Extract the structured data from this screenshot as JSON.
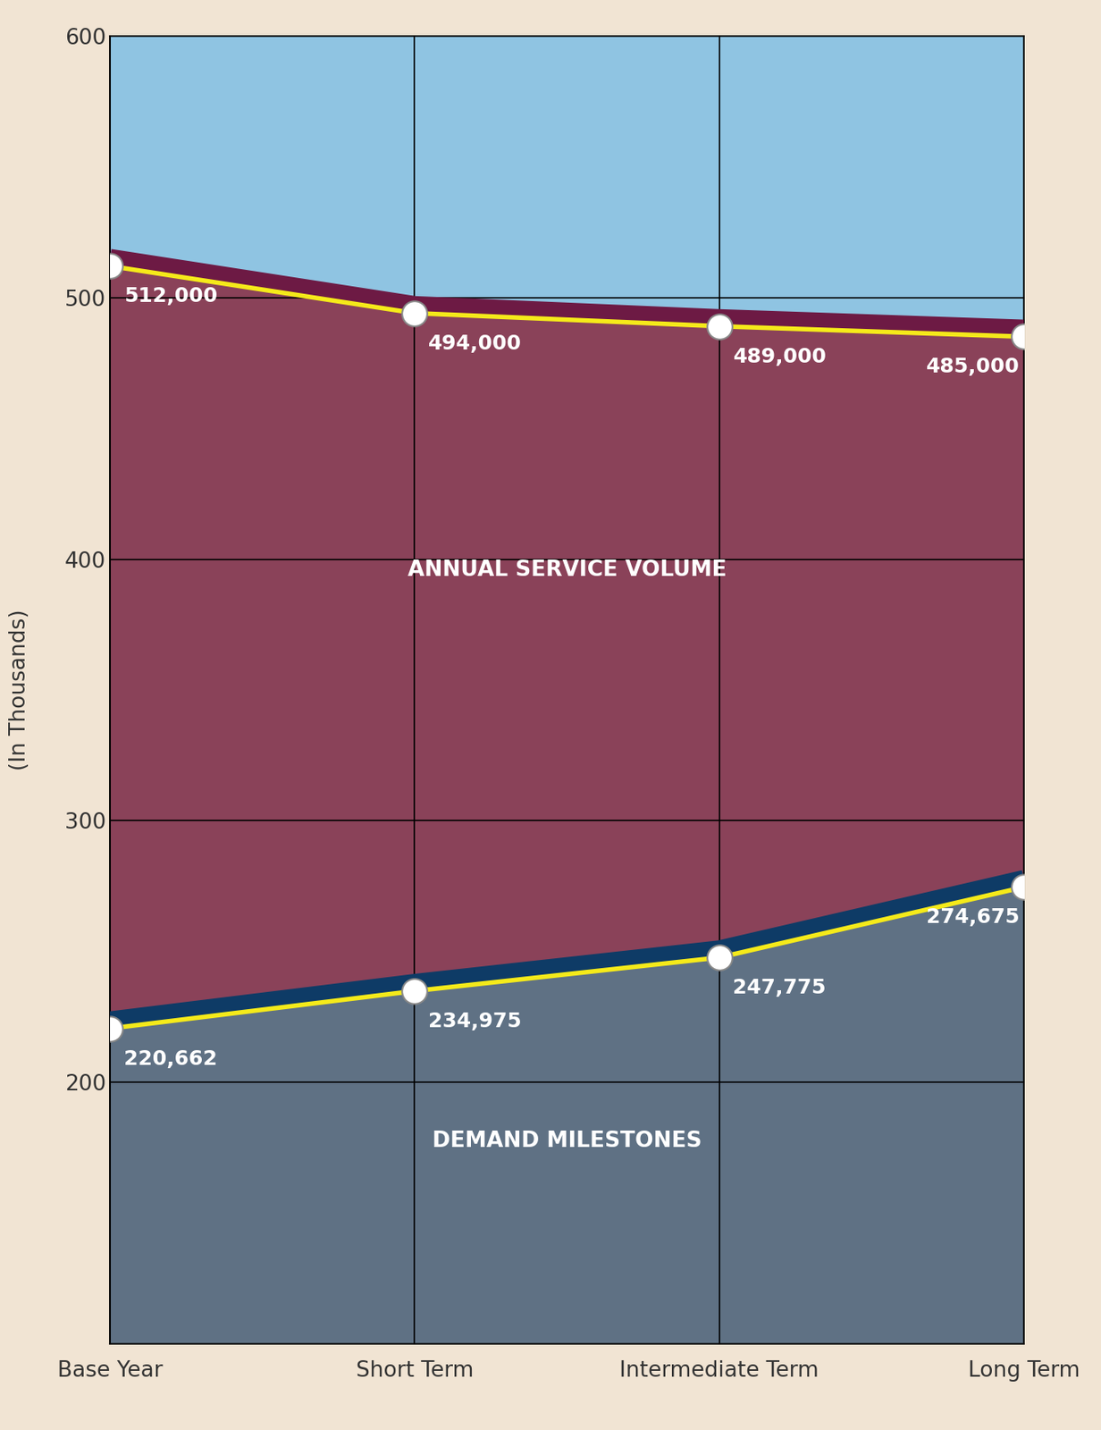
{
  "chart_data": {
    "type": "line",
    "y_label": "(In Thousands)",
    "categories": [
      "Base Year",
      "Short Term",
      "Intermediate Term",
      "Long Term"
    ],
    "series": [
      {
        "name": "ANNUAL SERVICE VOLUME",
        "color": "#8a4259",
        "values": [
          512,
          494,
          489,
          485
        ],
        "value_labels": [
          "512,000",
          "494,000",
          "489,000",
          "485,000"
        ]
      },
      {
        "name": "DEMAND MILESTONES",
        "color": "#5f7184",
        "values": [
          220.662,
          234.975,
          247.775,
          274.675
        ],
        "value_labels": [
          "220,662",
          "234,975",
          "247,775",
          "274,675"
        ]
      }
    ],
    "ylim": [
      100,
      600
    ],
    "yticks": [
      200,
      300,
      400,
      500,
      600
    ],
    "grid": true,
    "data_labels": true,
    "marker": "o"
  }
}
